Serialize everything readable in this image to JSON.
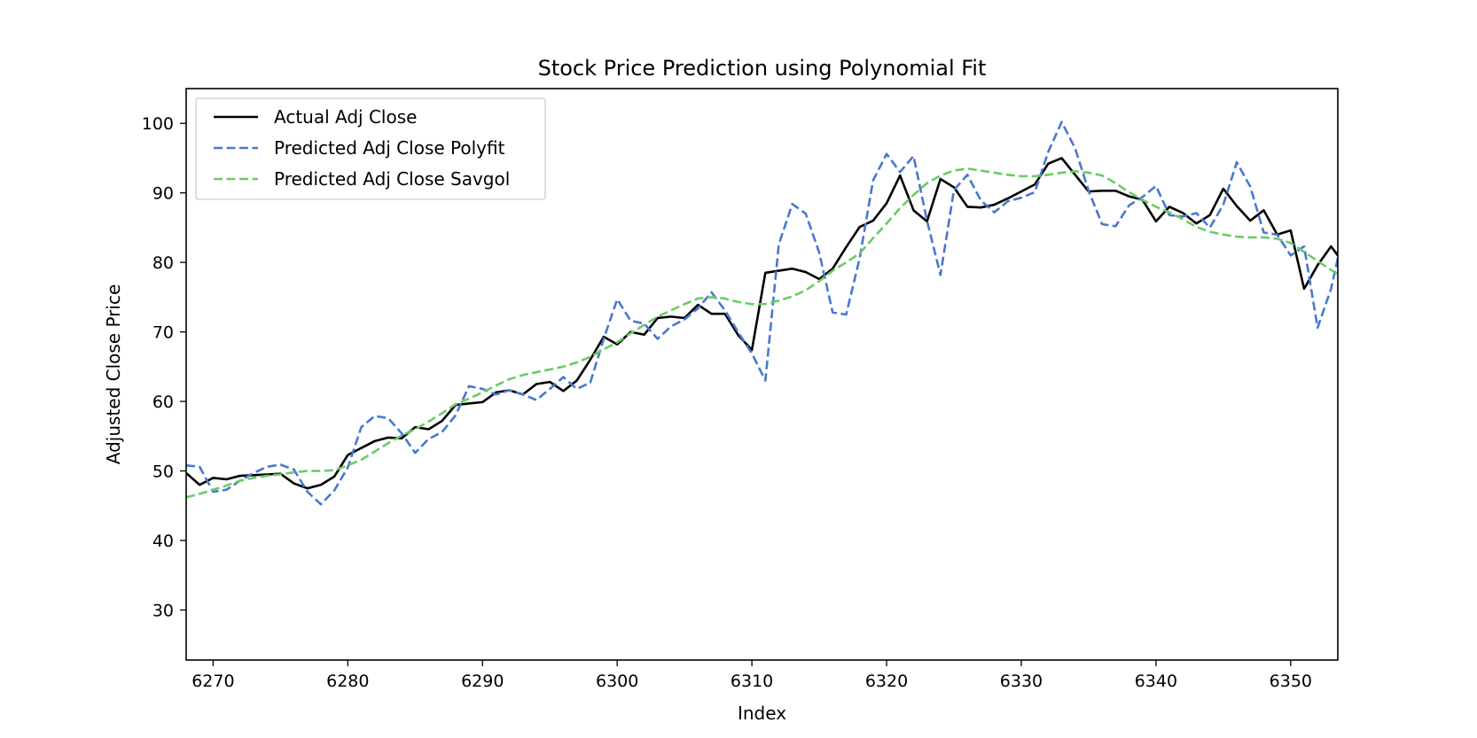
{
  "chart_data": {
    "type": "line",
    "title": "Stock Price Prediction using Polynomial Fit",
    "xlabel": "Index",
    "ylabel": "Adjusted Close Price",
    "xlim": [
      6268,
      6353.5
    ],
    "ylim": [
      22.8,
      105
    ],
    "xticks": [
      6270,
      6280,
      6290,
      6300,
      6310,
      6320,
      6330,
      6340,
      6350
    ],
    "yticks": [
      30,
      40,
      50,
      60,
      70,
      80,
      90,
      100
    ],
    "grid": false,
    "legend_position": "top-left",
    "x": [
      6268,
      6269,
      6270,
      6271,
      6272,
      6273,
      6274,
      6275,
      6276,
      6277,
      6278,
      6279,
      6280,
      6281,
      6282,
      6283,
      6284,
      6285,
      6286,
      6287,
      6288,
      6289,
      6290,
      6291,
      6292,
      6293,
      6294,
      6295,
      6296,
      6297,
      6298,
      6299,
      6300,
      6301,
      6302,
      6303,
      6304,
      6305,
      6306,
      6307,
      6308,
      6309,
      6310,
      6311,
      6312,
      6313,
      6314,
      6315,
      6316,
      6317,
      6318,
      6319,
      6320,
      6321,
      6322,
      6323,
      6324,
      6325,
      6326,
      6327,
      6328,
      6329,
      6330,
      6331,
      6332,
      6333,
      6334,
      6335,
      6336,
      6337,
      6338,
      6339,
      6340,
      6341,
      6342,
      6343,
      6344,
      6345,
      6346,
      6347,
      6348,
      6349,
      6350,
      6351,
      6352,
      6353,
      6353.5
    ],
    "series": [
      {
        "name": "Actual Adj Close",
        "color": "#000000",
        "style": "solid",
        "values": [
          49.7,
          48.0,
          49.0,
          48.8,
          49.3,
          49.4,
          49.5,
          49.6,
          48.2,
          47.5,
          48.0,
          49.2,
          52.3,
          53.3,
          54.3,
          54.8,
          54.7,
          56.3,
          56.0,
          57.2,
          59.5,
          59.7,
          59.9,
          61.3,
          61.6,
          61.0,
          62.5,
          62.8,
          61.5,
          63.0,
          66.0,
          69.3,
          68.2,
          70.0,
          69.6,
          72.0,
          72.2,
          72.0,
          73.9,
          72.6,
          72.6,
          69.5,
          67.4,
          78.5,
          78.8,
          79.1,
          78.6,
          77.6,
          79.1,
          82.2,
          85.1,
          86.0,
          88.5,
          92.5,
          87.5,
          85.9,
          92.0,
          90.8,
          88.0,
          87.9,
          88.3,
          89.2,
          90.2,
          91.2,
          94.2,
          95.0,
          92.6,
          90.2,
          90.3,
          90.3,
          89.5,
          89.0,
          85.9,
          88.0,
          87.1,
          85.6,
          86.8,
          90.6,
          88.1,
          86.0,
          87.5,
          84.0,
          84.6,
          76.2,
          79.6,
          82.3,
          81.0
        ]
      },
      {
        "name": "Predicted Adj Close Polyfit",
        "color": "#4878cf",
        "style": "dashed",
        "values": [
          50.8,
          50.6,
          47.0,
          47.3,
          48.6,
          49.7,
          50.6,
          50.9,
          50.2,
          47.0,
          45.2,
          47.2,
          50.5,
          56.3,
          57.9,
          57.6,
          55.4,
          52.6,
          54.6,
          55.6,
          58.0,
          62.2,
          61.8,
          61.0,
          61.6,
          61.0,
          60.2,
          61.8,
          63.5,
          61.8,
          62.7,
          69.0,
          74.7,
          71.6,
          71.2,
          69.0,
          70.8,
          71.8,
          73.4,
          75.7,
          73.1,
          69.9,
          66.9,
          63.0,
          82.6,
          88.4,
          87.0,
          81.4,
          72.8,
          72.5,
          80.6,
          91.8,
          95.6,
          93.0,
          95.3,
          86.0,
          78.2,
          90.4,
          92.6,
          88.9,
          87.2,
          88.8,
          89.3,
          90.1,
          95.9,
          100.2,
          96.4,
          90.3,
          85.5,
          85.2,
          88.2,
          89.4,
          91.0,
          86.8,
          86.6,
          87.1,
          85.0,
          88.3,
          94.4,
          90.9,
          84.3,
          84.0,
          81.0,
          82.3,
          70.6,
          76.2,
          80.6
        ]
      },
      {
        "name": "Predicted Adj Close Savgol",
        "color": "#6acc65",
        "style": "dashed",
        "values": [
          46.2,
          46.7,
          47.3,
          47.9,
          48.6,
          49.0,
          49.3,
          49.5,
          49.8,
          50.0,
          50.0,
          50.1,
          50.8,
          51.6,
          52.8,
          54.0,
          55.1,
          56.0,
          57.1,
          58.3,
          59.6,
          60.4,
          61.3,
          62.3,
          63.2,
          63.8,
          64.2,
          64.6,
          65.0,
          65.6,
          66.4,
          67.5,
          68.5,
          69.8,
          71.0,
          72.2,
          73.1,
          74.0,
          74.8,
          75.0,
          74.8,
          74.3,
          74.0,
          74.0,
          74.5,
          75.1,
          76.0,
          77.3,
          78.8,
          80.0,
          81.3,
          83.5,
          85.6,
          87.8,
          89.7,
          91.4,
          92.5,
          93.2,
          93.5,
          93.2,
          92.9,
          92.6,
          92.4,
          92.4,
          92.6,
          92.9,
          93.1,
          92.9,
          92.5,
          91.4,
          90.1,
          89.0,
          88.0,
          87.2,
          86.2,
          85.1,
          84.4,
          84.0,
          83.7,
          83.6,
          83.6,
          83.4,
          82.8,
          81.5,
          80.2,
          78.9,
          78.3
        ]
      }
    ]
  }
}
